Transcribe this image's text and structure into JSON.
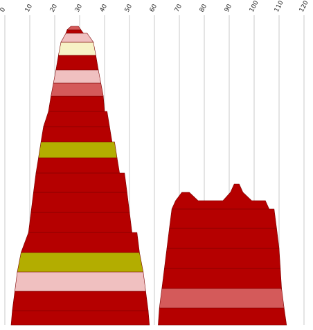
{
  "chart_data": {
    "type": "area",
    "title": "",
    "xlabel": "",
    "ylabel": "",
    "xlim": [
      0,
      120
    ],
    "x_ticks": [
      "0",
      "10",
      "20",
      "30",
      "40",
      "50",
      "60",
      "70",
      "80",
      "90",
      "100",
      "110",
      "120"
    ],
    "grid": "vertical",
    "legend": "none",
    "colors": {
      "dark_red": "#b50000",
      "light_pink": "#f0c0c0",
      "cream": "#f7f2c6",
      "salmon": "#d45a5a",
      "olive": "#b3ad00"
    },
    "shapes": [
      {
        "name": "left-stack",
        "bands": [
          {
            "color": "dark_red",
            "left": [
              2.5,
              3.0
            ],
            "right": [
              58.0,
              57.5
            ]
          },
          {
            "color": "dark_red",
            "left": [
              3.0,
              4.0
            ],
            "right": [
              57.5,
              56.5
            ]
          },
          {
            "color": "light_pink",
            "left": [
              4.0,
              5.0
            ],
            "right": [
              56.5,
              55.5
            ]
          },
          {
            "color": "olive",
            "left": [
              5.0,
              6.5
            ],
            "right": [
              55.5,
              54.0
            ]
          },
          {
            "color": "dark_red",
            "left": [
              6.5,
              9.5
            ],
            "right": [
              54.0,
              53.0
            ]
          },
          {
            "color": "dark_red",
            "left": [
              9.5,
              10.5
            ],
            "right": [
              51.0,
              50.0
            ]
          },
          {
            "color": "dark_red",
            "left": [
              10.5,
              11.5
            ],
            "right": [
              50.0,
              49.0
            ]
          },
          {
            "color": "dark_red",
            "left": [
              11.5,
              12.5
            ],
            "right": [
              49.0,
              48.0
            ]
          },
          {
            "color": "dark_red",
            "left": [
              12.5,
              13.5
            ],
            "right": [
              46.0,
              45.0
            ]
          },
          {
            "color": "olive",
            "left": [
              13.5,
              14.5
            ],
            "right": [
              45.0,
              44.0
            ]
          },
          {
            "color": "dark_red",
            "left": [
              14.5,
              15.5
            ],
            "right": [
              43.0,
              42.0
            ]
          },
          {
            "color": "dark_red",
            "left": [
              15.5,
              17.5
            ],
            "right": [
              42.0,
              41.0
            ]
          },
          {
            "color": "dark_red",
            "left": [
              17.5,
              18.5
            ],
            "right": [
              40.0,
              39.5
            ]
          },
          {
            "color": "salmon",
            "left": [
              18.5,
              19.5
            ],
            "right": [
              39.5,
              38.5
            ]
          },
          {
            "color": "light_pink",
            "left": [
              19.5,
              20.5
            ],
            "right": [
              38.5,
              37.5
            ]
          },
          {
            "color": "dark_red",
            "left": [
              20.5,
              21.5
            ],
            "right": [
              37.5,
              36.5
            ]
          },
          {
            "color": "cream",
            "left": [
              21.5,
              22.5
            ],
            "right": [
              36.5,
              35.5
            ]
          },
          {
            "color": "light_pink",
            "left": [
              22.5,
              24.5
            ],
            "right": [
              35.5,
              33.0
            ]
          },
          {
            "color": "dark_red",
            "left": [
              24.5,
              25.0
            ],
            "right": [
              31.5,
              30.5
            ]
          },
          {
            "color": "salmon",
            "left": [
              25.0,
              26.5
            ],
            "right": [
              30.5,
              29.5
            ]
          }
        ]
      },
      {
        "name": "right-stack",
        "bands": [
          {
            "color": "dark_red",
            "left": [
              61.5,
              62.0
            ],
            "right": [
              113.0,
              112.0
            ]
          },
          {
            "color": "salmon",
            "left": [
              62.0,
              63.0
            ],
            "right": [
              112.0,
              111.0
            ]
          },
          {
            "color": "dark_red",
            "left": [
              63.0,
              64.0
            ],
            "right": [
              111.0,
              110.5
            ]
          },
          {
            "color": "dark_red",
            "left": [
              64.0,
              65.0
            ],
            "right": [
              110.5,
              110.0
            ]
          },
          {
            "color": "dark_red",
            "left": [
              65.0,
              66.0
            ],
            "right": [
              110.0,
              109.0
            ]
          },
          {
            "color": "dark_red",
            "left": [
              66.0,
              67.0
            ],
            "right": [
              109.0,
              108.0
            ]
          }
        ],
        "top": [
          [
            67.0,
            0
          ],
          [
            68.5,
            1
          ],
          [
            71.0,
            2
          ],
          [
            74.0,
            2
          ],
          [
            77.5,
            1
          ],
          [
            87.5,
            1
          ],
          [
            90.5,
            2
          ],
          [
            92.0,
            3
          ],
          [
            94.0,
            3
          ],
          [
            95.5,
            2
          ],
          [
            99.0,
            1
          ],
          [
            104.5,
            1
          ],
          [
            106.0,
            0
          ]
        ]
      }
    ]
  }
}
